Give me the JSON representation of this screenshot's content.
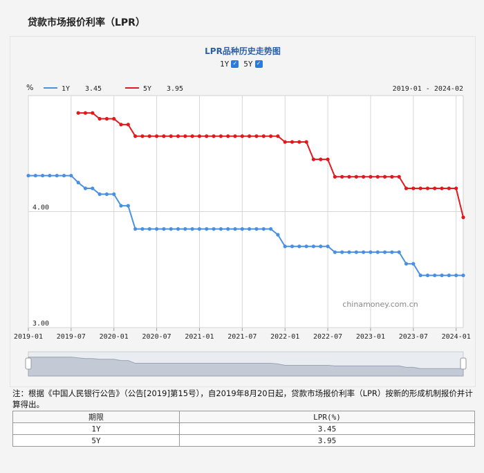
{
  "page": {
    "title": "贷款市场报价利率（LPR）"
  },
  "chart_data": {
    "type": "line",
    "title": "LPR品种历史走势图",
    "legend_controls": [
      {
        "label": "1Y",
        "checked": true
      },
      {
        "label": "5Y",
        "checked": true
      }
    ],
    "unit_label": "%",
    "range_label": "2019-01 - 2024-02",
    "watermark": "chinamoney.com.cn",
    "ylim": [
      3.0,
      5.0
    ],
    "y_ticks": [
      {
        "value": 3.0,
        "label": "3.00"
      },
      {
        "value": 4.0,
        "label": "4.00"
      }
    ],
    "xlim": [
      "2019-01",
      "2024-02"
    ],
    "x_ticks": [
      "2019-01",
      "2019-07",
      "2020-01",
      "2020-07",
      "2021-01",
      "2021-07",
      "2022-01",
      "2022-07",
      "2023-01",
      "2023-07",
      "2024-01"
    ],
    "series": [
      {
        "name": "1Y",
        "latest": "3.45",
        "color": "#4a90e2",
        "points": [
          [
            "2019-01",
            4.31
          ],
          [
            "2019-02",
            4.31
          ],
          [
            "2019-03",
            4.31
          ],
          [
            "2019-04",
            4.31
          ],
          [
            "2019-05",
            4.31
          ],
          [
            "2019-06",
            4.31
          ],
          [
            "2019-07",
            4.31
          ],
          [
            "2019-08",
            4.25
          ],
          [
            "2019-09",
            4.2
          ],
          [
            "2019-10",
            4.2
          ],
          [
            "2019-11",
            4.15
          ],
          [
            "2019-12",
            4.15
          ],
          [
            "2020-01",
            4.15
          ],
          [
            "2020-02",
            4.05
          ],
          [
            "2020-03",
            4.05
          ],
          [
            "2020-04",
            3.85
          ],
          [
            "2020-05",
            3.85
          ],
          [
            "2020-06",
            3.85
          ],
          [
            "2020-07",
            3.85
          ],
          [
            "2020-08",
            3.85
          ],
          [
            "2020-09",
            3.85
          ],
          [
            "2020-10",
            3.85
          ],
          [
            "2020-11",
            3.85
          ],
          [
            "2020-12",
            3.85
          ],
          [
            "2021-01",
            3.85
          ],
          [
            "2021-02",
            3.85
          ],
          [
            "2021-03",
            3.85
          ],
          [
            "2021-04",
            3.85
          ],
          [
            "2021-05",
            3.85
          ],
          [
            "2021-06",
            3.85
          ],
          [
            "2021-07",
            3.85
          ],
          [
            "2021-08",
            3.85
          ],
          [
            "2021-09",
            3.85
          ],
          [
            "2021-10",
            3.85
          ],
          [
            "2021-11",
            3.85
          ],
          [
            "2021-12",
            3.8
          ],
          [
            "2022-01",
            3.7
          ],
          [
            "2022-02",
            3.7
          ],
          [
            "2022-03",
            3.7
          ],
          [
            "2022-04",
            3.7
          ],
          [
            "2022-05",
            3.7
          ],
          [
            "2022-06",
            3.7
          ],
          [
            "2022-07",
            3.7
          ],
          [
            "2022-08",
            3.65
          ],
          [
            "2022-09",
            3.65
          ],
          [
            "2022-10",
            3.65
          ],
          [
            "2022-11",
            3.65
          ],
          [
            "2022-12",
            3.65
          ],
          [
            "2023-01",
            3.65
          ],
          [
            "2023-02",
            3.65
          ],
          [
            "2023-03",
            3.65
          ],
          [
            "2023-04",
            3.65
          ],
          [
            "2023-05",
            3.65
          ],
          [
            "2023-06",
            3.55
          ],
          [
            "2023-07",
            3.55
          ],
          [
            "2023-08",
            3.45
          ],
          [
            "2023-09",
            3.45
          ],
          [
            "2023-10",
            3.45
          ],
          [
            "2023-11",
            3.45
          ],
          [
            "2023-12",
            3.45
          ],
          [
            "2024-01",
            3.45
          ],
          [
            "2024-02",
            3.45
          ]
        ]
      },
      {
        "name": "5Y",
        "latest": "3.95",
        "color": "#e0191c",
        "points": [
          [
            "2019-08",
            4.85
          ],
          [
            "2019-09",
            4.85
          ],
          [
            "2019-10",
            4.85
          ],
          [
            "2019-11",
            4.8
          ],
          [
            "2019-12",
            4.8
          ],
          [
            "2020-01",
            4.8
          ],
          [
            "2020-02",
            4.75
          ],
          [
            "2020-03",
            4.75
          ],
          [
            "2020-04",
            4.65
          ],
          [
            "2020-05",
            4.65
          ],
          [
            "2020-06",
            4.65
          ],
          [
            "2020-07",
            4.65
          ],
          [
            "2020-08",
            4.65
          ],
          [
            "2020-09",
            4.65
          ],
          [
            "2020-10",
            4.65
          ],
          [
            "2020-11",
            4.65
          ],
          [
            "2020-12",
            4.65
          ],
          [
            "2021-01",
            4.65
          ],
          [
            "2021-02",
            4.65
          ],
          [
            "2021-03",
            4.65
          ],
          [
            "2021-04",
            4.65
          ],
          [
            "2021-05",
            4.65
          ],
          [
            "2021-06",
            4.65
          ],
          [
            "2021-07",
            4.65
          ],
          [
            "2021-08",
            4.65
          ],
          [
            "2021-09",
            4.65
          ],
          [
            "2021-10",
            4.65
          ],
          [
            "2021-11",
            4.65
          ],
          [
            "2021-12",
            4.65
          ],
          [
            "2022-01",
            4.6
          ],
          [
            "2022-02",
            4.6
          ],
          [
            "2022-03",
            4.6
          ],
          [
            "2022-04",
            4.6
          ],
          [
            "2022-05",
            4.45
          ],
          [
            "2022-06",
            4.45
          ],
          [
            "2022-07",
            4.45
          ],
          [
            "2022-08",
            4.3
          ],
          [
            "2022-09",
            4.3
          ],
          [
            "2022-10",
            4.3
          ],
          [
            "2022-11",
            4.3
          ],
          [
            "2022-12",
            4.3
          ],
          [
            "2023-01",
            4.3
          ],
          [
            "2023-02",
            4.3
          ],
          [
            "2023-03",
            4.3
          ],
          [
            "2023-04",
            4.3
          ],
          [
            "2023-05",
            4.3
          ],
          [
            "2023-06",
            4.2
          ],
          [
            "2023-07",
            4.2
          ],
          [
            "2023-08",
            4.2
          ],
          [
            "2023-09",
            4.2
          ],
          [
            "2023-10",
            4.2
          ],
          [
            "2023-11",
            4.2
          ],
          [
            "2023-12",
            4.2
          ],
          [
            "2024-01",
            4.2
          ],
          [
            "2024-02",
            3.95
          ]
        ]
      }
    ]
  },
  "note": "注：根据《中国人民银行公告》（公告[2019]第15号），自2019年8月20日起，贷款市场报价利率（LPR）按新的形成机制报价并计算得出。",
  "table": {
    "headers": [
      "期限",
      "LPR(%)"
    ],
    "rows": [
      [
        "1Y",
        "3.45"
      ],
      [
        "5Y",
        "3.95"
      ]
    ]
  }
}
